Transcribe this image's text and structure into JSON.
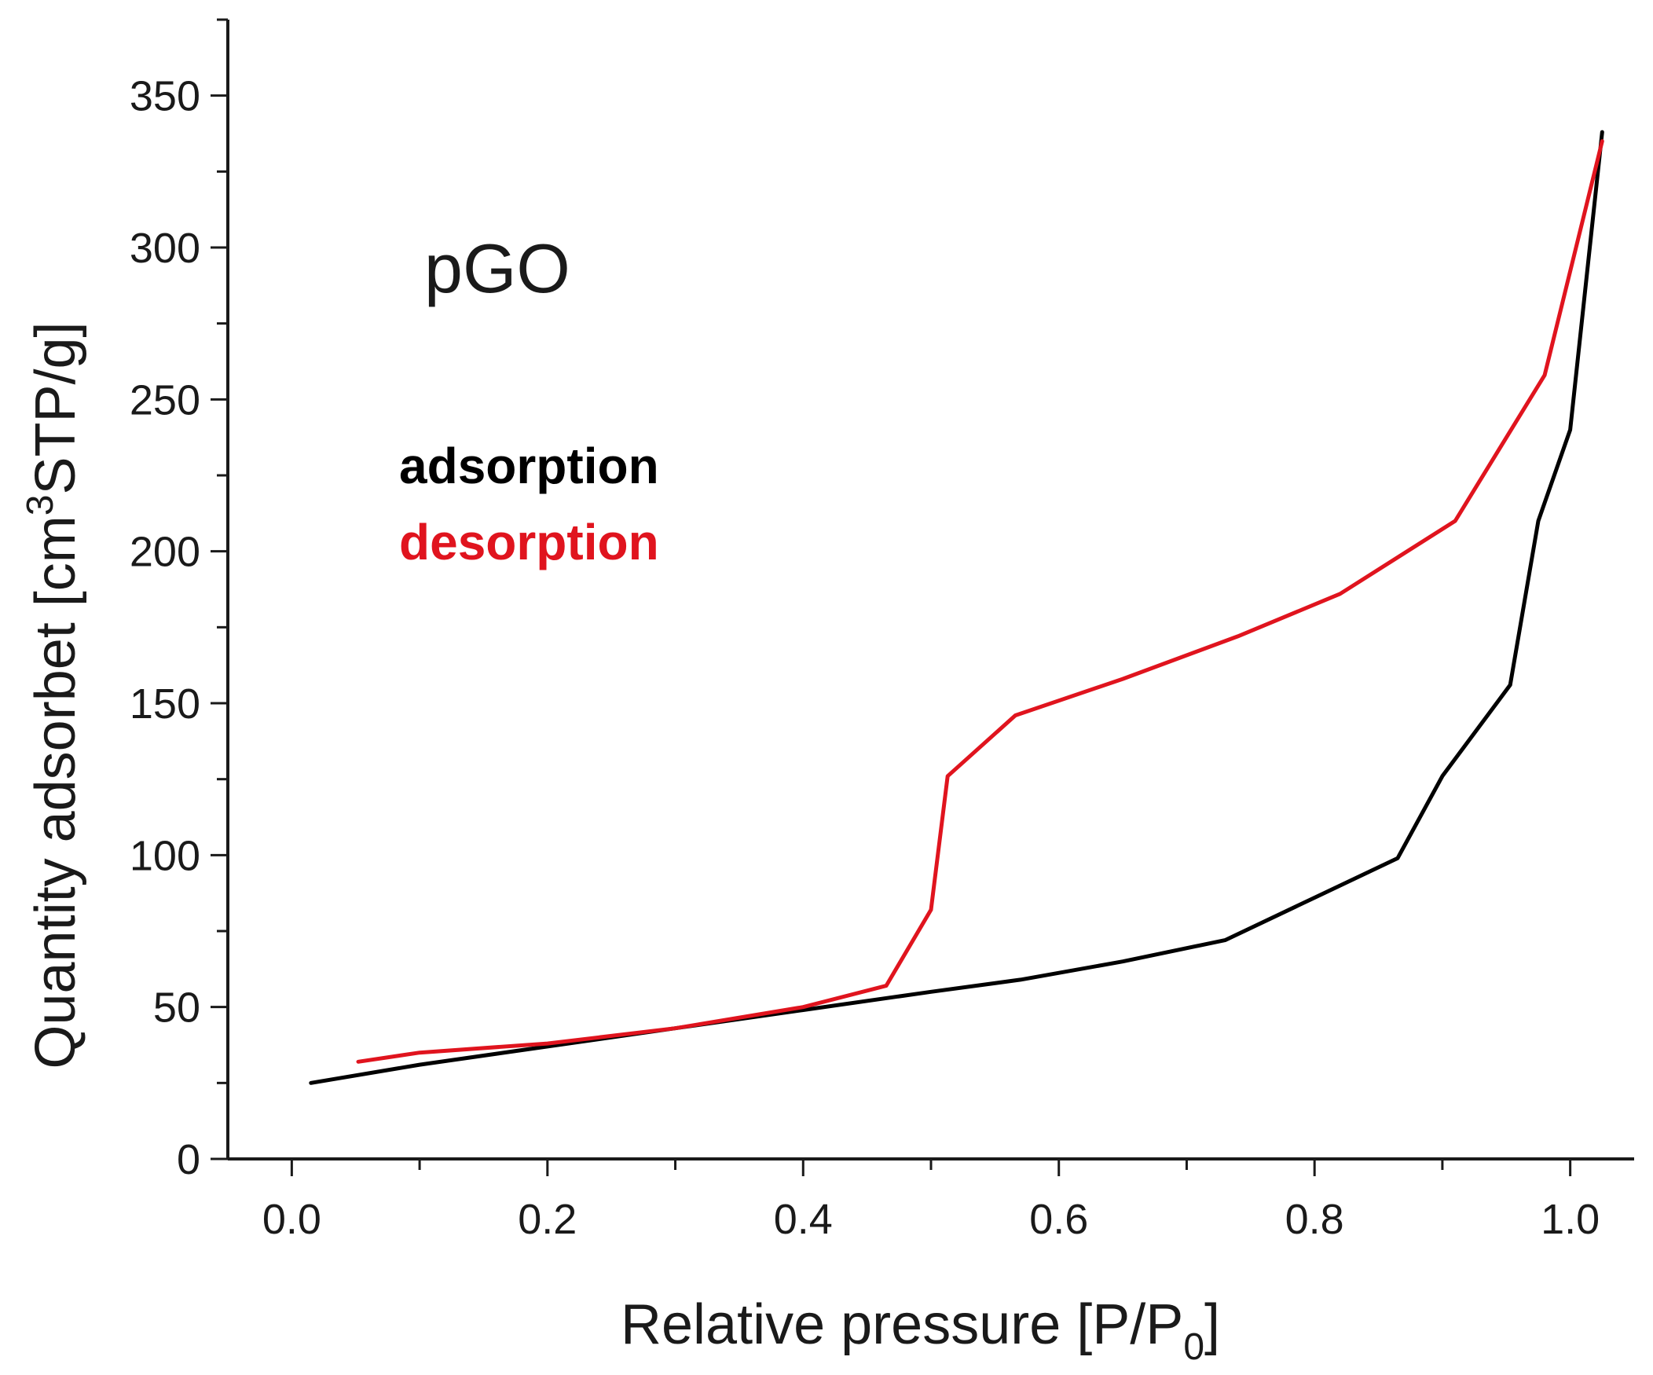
{
  "chart_data": {
    "type": "line",
    "title": "",
    "annotation": "pGO",
    "xlabel": "Relative pressure [P/P",
    "xlabel_subscript": "0",
    "xlabel_suffix": "]",
    "ylabel": "Quantity adsorbet [cm",
    "ylabel_superscript": "3",
    "ylabel_suffix": "STP/g]",
    "xlim": [
      -0.05,
      1.05
    ],
    "ylim": [
      0,
      375
    ],
    "x_ticks": [
      0.0,
      0.2,
      0.4,
      0.6,
      0.8,
      1.0
    ],
    "x_tick_labels": [
      "0.0",
      "0.2",
      "0.4",
      "0.6",
      "0.8",
      "1.0"
    ],
    "y_ticks": [
      0,
      50,
      100,
      150,
      200,
      250,
      300,
      350
    ],
    "y_tick_labels": [
      "0",
      "50",
      "100",
      "150",
      "200",
      "250",
      "300",
      "350"
    ],
    "grid": false,
    "legend_position": "upper-left",
    "series": [
      {
        "name": "adsorption",
        "color": "#000000",
        "x": [
          0.015,
          0.1,
          0.2,
          0.3,
          0.4,
          0.5,
          0.57,
          0.65,
          0.73,
          0.8,
          0.865,
          0.9,
          0.953,
          0.975,
          1.0,
          1.025
        ],
        "y": [
          25,
          31,
          37,
          43,
          49,
          55,
          59,
          65,
          72,
          86,
          99,
          126,
          156,
          210,
          240,
          338
        ]
      },
      {
        "name": "desorption",
        "color": "#e0141e",
        "x": [
          0.052,
          0.1,
          0.2,
          0.3,
          0.4,
          0.465,
          0.5,
          0.513,
          0.566,
          0.65,
          0.74,
          0.82,
          0.91,
          0.98,
          1.025
        ],
        "y": [
          32,
          35,
          38,
          43,
          50,
          57,
          82,
          126,
          146,
          158,
          172,
          186,
          210,
          258,
          335
        ]
      }
    ]
  }
}
